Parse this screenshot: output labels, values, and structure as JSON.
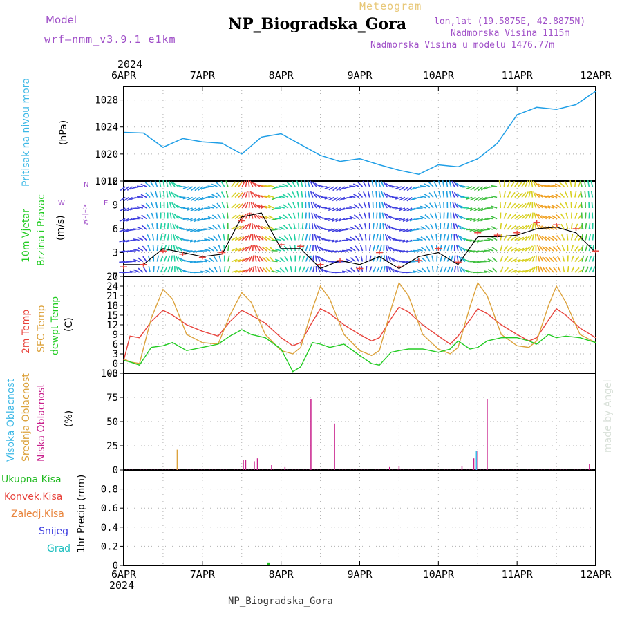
{
  "header": {
    "model_label": "Model",
    "model_name": "wrf–nmm_v3.9.1  e1km",
    "meteogram": "Meteogram",
    "station": "NP_Biogradska_Gora",
    "lonlat": "lon,lat (19.5875E, 42.8875N)",
    "altitude": "Nadmorska Visina 1115m",
    "model_altitude": "Nadmorska Visina u modelu 1476.77m",
    "year_top": "2024",
    "year_bottom": "2024",
    "footer_station": "NP_Biogradska_Gora",
    "watermark": "made by Angel"
  },
  "colors": {
    "pressure": "#1e9ee6",
    "temp2m": "#e8433c",
    "sfc_temp": "#dca23c",
    "dewpoint": "#22cc22",
    "cloud_high": "#3cb8e6",
    "cloud_mid": "#dca23c",
    "cloud_low": "#c8208c",
    "model_label": "#a050c8",
    "meteogram": "#e8c878"
  },
  "axis_dates": [
    "6APR",
    "7APR",
    "8APR",
    "9APR",
    "10APR",
    "11APR",
    "12APR"
  ],
  "panel_labels": {
    "pressure": [
      "Pritisak na nivou mora",
      "(hPa)"
    ],
    "wind": [
      "10m Vjetar",
      "Brzina i Pravac",
      "(m/s)"
    ],
    "temp": [
      "2m Temp",
      "SFC Temp",
      "dewpt Temp",
      "(C)"
    ],
    "cloud": [
      "Visoka Oblacnost",
      "Srednja Oblacnost",
      "Niska Oblacnost",
      "(%)"
    ],
    "precip_axis": "1hr Precip (mm)",
    "compass": {
      "n": "N",
      "s": "S",
      "e": "E",
      "w": "W",
      "arrows": "<–|–>"
    }
  },
  "precip_legend": [
    {
      "label": "Ukupna Kisa",
      "color": "#22bb22"
    },
    {
      "label": "Konvek.Kisa",
      "color": "#e8433c"
    },
    {
      "label": "Zaledj.Kisa",
      "color": "#e8843c"
    },
    {
      "label": "Snijeg",
      "color": "#4040e0"
    },
    {
      "label": "Grad",
      "color": "#20c0c0"
    }
  ],
  "chart_data": [
    {
      "type": "line",
      "name": "pressure",
      "x_range_days": [
        6,
        12
      ],
      "ylim": [
        1016,
        1030
      ],
      "yticks": [
        1016,
        1020,
        1024,
        1028
      ],
      "x": [
        6.0,
        6.25,
        6.5,
        6.75,
        7.0,
        7.25,
        7.5,
        7.75,
        8.0,
        8.25,
        8.5,
        8.75,
        9.0,
        9.25,
        9.5,
        9.75,
        10.0,
        10.25,
        10.5,
        10.75,
        11.0,
        11.25,
        11.5,
        11.75,
        12.0
      ],
      "values": [
        1023.2,
        1023.1,
        1021.0,
        1022.3,
        1021.8,
        1021.6,
        1020.0,
        1022.5,
        1023.0,
        1021.4,
        1019.8,
        1018.9,
        1019.3,
        1018.4,
        1017.6,
        1017.0,
        1018.4,
        1018.1,
        1019.3,
        1021.6,
        1025.8,
        1026.9,
        1026.6,
        1027.3,
        1029.3
      ],
      "series": [
        {
          "name": "Pritisak na nivou mora",
          "color": "#1e9ee6"
        }
      ]
    },
    {
      "type": "line",
      "name": "wind_speed",
      "x_range_days": [
        6,
        12
      ],
      "ylim": [
        0,
        12
      ],
      "yticks": [
        0,
        3,
        6,
        9,
        12
      ],
      "x": [
        6.0,
        6.25,
        6.5,
        6.75,
        7.0,
        7.25,
        7.5,
        7.75,
        8.0,
        8.25,
        8.5,
        8.75,
        9.0,
        9.25,
        9.5,
        9.75,
        10.0,
        10.25,
        10.5,
        10.75,
        11.0,
        11.25,
        11.5,
        11.75,
        12.0
      ],
      "values": [
        1.5,
        1.5,
        3.5,
        3.0,
        2.5,
        2.8,
        7.5,
        8.0,
        3.5,
        3.5,
        1.0,
        2.0,
        1.5,
        2.5,
        1.0,
        2.5,
        3.0,
        1.5,
        5.0,
        5.0,
        5.2,
        6.0,
        6.2,
        5.5,
        3.0
      ],
      "gust_values": [
        1.2,
        1.5,
        3.2,
        2.8,
        2.4,
        3.0,
        7.0,
        8.8,
        4.0,
        3.8,
        1.5,
        2.0,
        1.0,
        3.0,
        1.2,
        2.0,
        3.5,
        1.8,
        5.5,
        5.2,
        5.5,
        6.8,
        6.5,
        6.0,
        3.2
      ],
      "series": [
        {
          "name": "10m Vjetar",
          "color": "#000000"
        }
      ]
    },
    {
      "type": "line",
      "name": "temperature",
      "x_range_days": [
        6,
        12
      ],
      "ylim": [
        -3,
        27
      ],
      "yticks": [
        -3,
        0,
        3,
        6,
        9,
        12,
        15,
        18,
        21,
        24,
        27
      ],
      "x": [
        6.0,
        6.08,
        6.2,
        6.35,
        6.5,
        6.62,
        6.8,
        7.0,
        7.2,
        7.35,
        7.5,
        7.62,
        7.8,
        8.0,
        8.15,
        8.25,
        8.4,
        8.5,
        8.62,
        8.8,
        9.0,
        9.15,
        9.25,
        9.4,
        9.5,
        9.62,
        9.8,
        10.0,
        10.15,
        10.25,
        10.4,
        10.5,
        10.62,
        10.8,
        11.0,
        11.15,
        11.25,
        11.4,
        11.5,
        11.62,
        11.8,
        12.0
      ],
      "series": [
        {
          "name": "2m Temp",
          "color": "#e8433c",
          "values": [
            1.0,
            8.5,
            8.0,
            13.0,
            16.5,
            15.0,
            12.0,
            10.0,
            8.5,
            13.0,
            16.5,
            15.0,
            12.5,
            8.0,
            5.5,
            6.5,
            13.0,
            17.0,
            15.5,
            12.0,
            9.0,
            7.0,
            8.0,
            14.0,
            17.5,
            16.0,
            12.0,
            8.5,
            6.0,
            8.5,
            13.5,
            17.0,
            15.5,
            12.0,
            9.0,
            7.0,
            8.0,
            13.5,
            17.0,
            15.0,
            11.0,
            8.0
          ]
        },
        {
          "name": "SFC Temp",
          "color": "#dca23c",
          "values": [
            1.5,
            0.5,
            0.0,
            14.0,
            23.0,
            20.0,
            9.0,
            6.5,
            6.0,
            15.0,
            22.0,
            19.0,
            9.0,
            4.0,
            3.0,
            5.0,
            17.0,
            24.0,
            20.0,
            9.0,
            4.0,
            2.5,
            4.0,
            17.0,
            25.0,
            21.0,
            9.0,
            4.5,
            3.0,
            5.0,
            17.5,
            25.0,
            21.0,
            9.0,
            5.5,
            5.0,
            7.0,
            18.0,
            24.0,
            19.0,
            9.0,
            6.5
          ]
        },
        {
          "name": "dewpt Temp",
          "color": "#22cc22",
          "values": [
            1.0,
            0.5,
            -0.5,
            5.0,
            5.5,
            6.5,
            4.0,
            5.0,
            6.0,
            8.5,
            10.5,
            9.0,
            8.0,
            4.5,
            -2.5,
            -1.0,
            6.5,
            6.0,
            5.0,
            6.0,
            2.5,
            0.0,
            -0.5,
            3.5,
            4.0,
            4.5,
            4.5,
            3.5,
            4.5,
            7.0,
            4.5,
            5.0,
            7.0,
            8.0,
            8.0,
            7.0,
            6.0,
            9.0,
            8.0,
            8.5,
            8.0,
            6.5
          ]
        }
      ]
    },
    {
      "type": "bar",
      "name": "cloud_cover",
      "x_range_days": [
        6,
        12
      ],
      "ylim": [
        0,
        100
      ],
      "yticks": [
        0,
        25,
        50,
        75,
        100
      ],
      "bars": [
        {
          "x": 6.68,
          "value": 21,
          "layer": "Srednja Oblacnost"
        },
        {
          "x": 7.52,
          "value": 10,
          "layer": "Niska Oblacnost"
        },
        {
          "x": 7.55,
          "value": 10,
          "layer": "Niska Oblacnost"
        },
        {
          "x": 7.66,
          "value": 9,
          "layer": "Niska Oblacnost"
        },
        {
          "x": 7.7,
          "value": 12,
          "layer": "Niska Oblacnost"
        },
        {
          "x": 7.88,
          "value": 5,
          "layer": "Niska Oblacnost"
        },
        {
          "x": 8.05,
          "value": 3,
          "layer": "Niska Oblacnost"
        },
        {
          "x": 8.38,
          "value": 73,
          "layer": "Niska Oblacnost"
        },
        {
          "x": 8.68,
          "value": 48,
          "layer": "Niska Oblacnost"
        },
        {
          "x": 9.38,
          "value": 3,
          "layer": "Niska Oblacnost"
        },
        {
          "x": 9.5,
          "value": 4,
          "layer": "Niska Oblacnost"
        },
        {
          "x": 10.3,
          "value": 4,
          "layer": "Niska Oblacnost"
        },
        {
          "x": 10.45,
          "value": 12,
          "layer": "Niska Oblacnost"
        },
        {
          "x": 10.5,
          "value": 20,
          "layer": "Visoka Oblacnost"
        },
        {
          "x": 10.5,
          "value": 20,
          "layer": "Niska Oblacnost"
        },
        {
          "x": 10.62,
          "value": 73,
          "layer": "Niska Oblacnost"
        },
        {
          "x": 11.92,
          "value": 6,
          "layer": "Niska Oblacnost"
        }
      ]
    },
    {
      "type": "bar",
      "name": "precip",
      "x_range_days": [
        6,
        12
      ],
      "ylim": [
        0,
        1.0
      ],
      "yticks": [
        0,
        0.2,
        0.4,
        0.6,
        0.8
      ],
      "bars": [
        {
          "x": 6.66,
          "value": 0.005,
          "series": "Zaledj.Kisa"
        },
        {
          "x": 7.84,
          "value": 0.03,
          "series": "Ukupna Kisa"
        }
      ]
    }
  ]
}
